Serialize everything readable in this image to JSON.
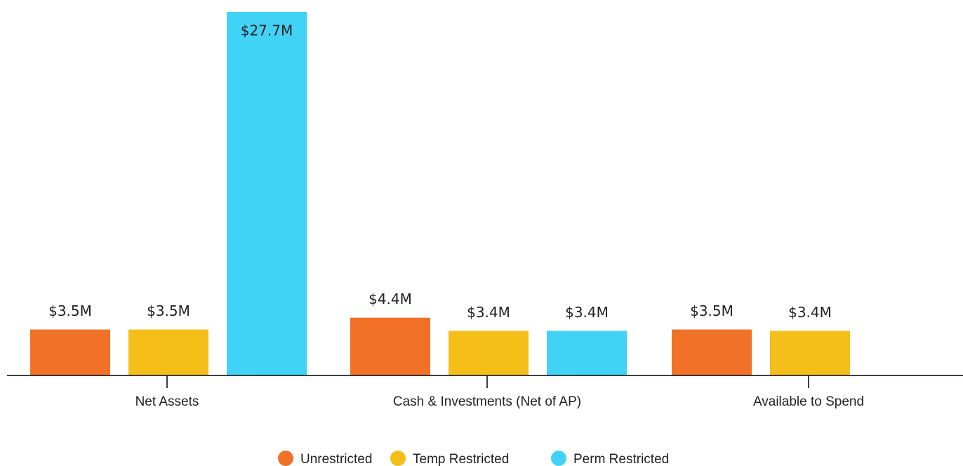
{
  "chart_data": {
    "type": "bar",
    "categories": [
      "Net Assets",
      "Cash & Investments (Net of AP)",
      "Available to Spend"
    ],
    "series": [
      {
        "name": "Unrestricted",
        "color": "#f07127",
        "values": [
          3.5,
          4.4,
          3.5
        ],
        "value_labels": [
          "$3.5M",
          "$4.4M",
          "$3.5M"
        ]
      },
      {
        "name": "Temp Restricted",
        "color": "#f5bf1a",
        "values": [
          3.5,
          3.4,
          3.4
        ],
        "value_labels": [
          "$3.5M",
          "$3.4M",
          "$3.4M"
        ]
      },
      {
        "name": "Perm Restricted",
        "color": "#40d3f5",
        "values": [
          27.7,
          3.4,
          null
        ],
        "value_labels": [
          "$27.7M",
          "$3.4M",
          null
        ]
      }
    ],
    "legend": "bottom"
  }
}
